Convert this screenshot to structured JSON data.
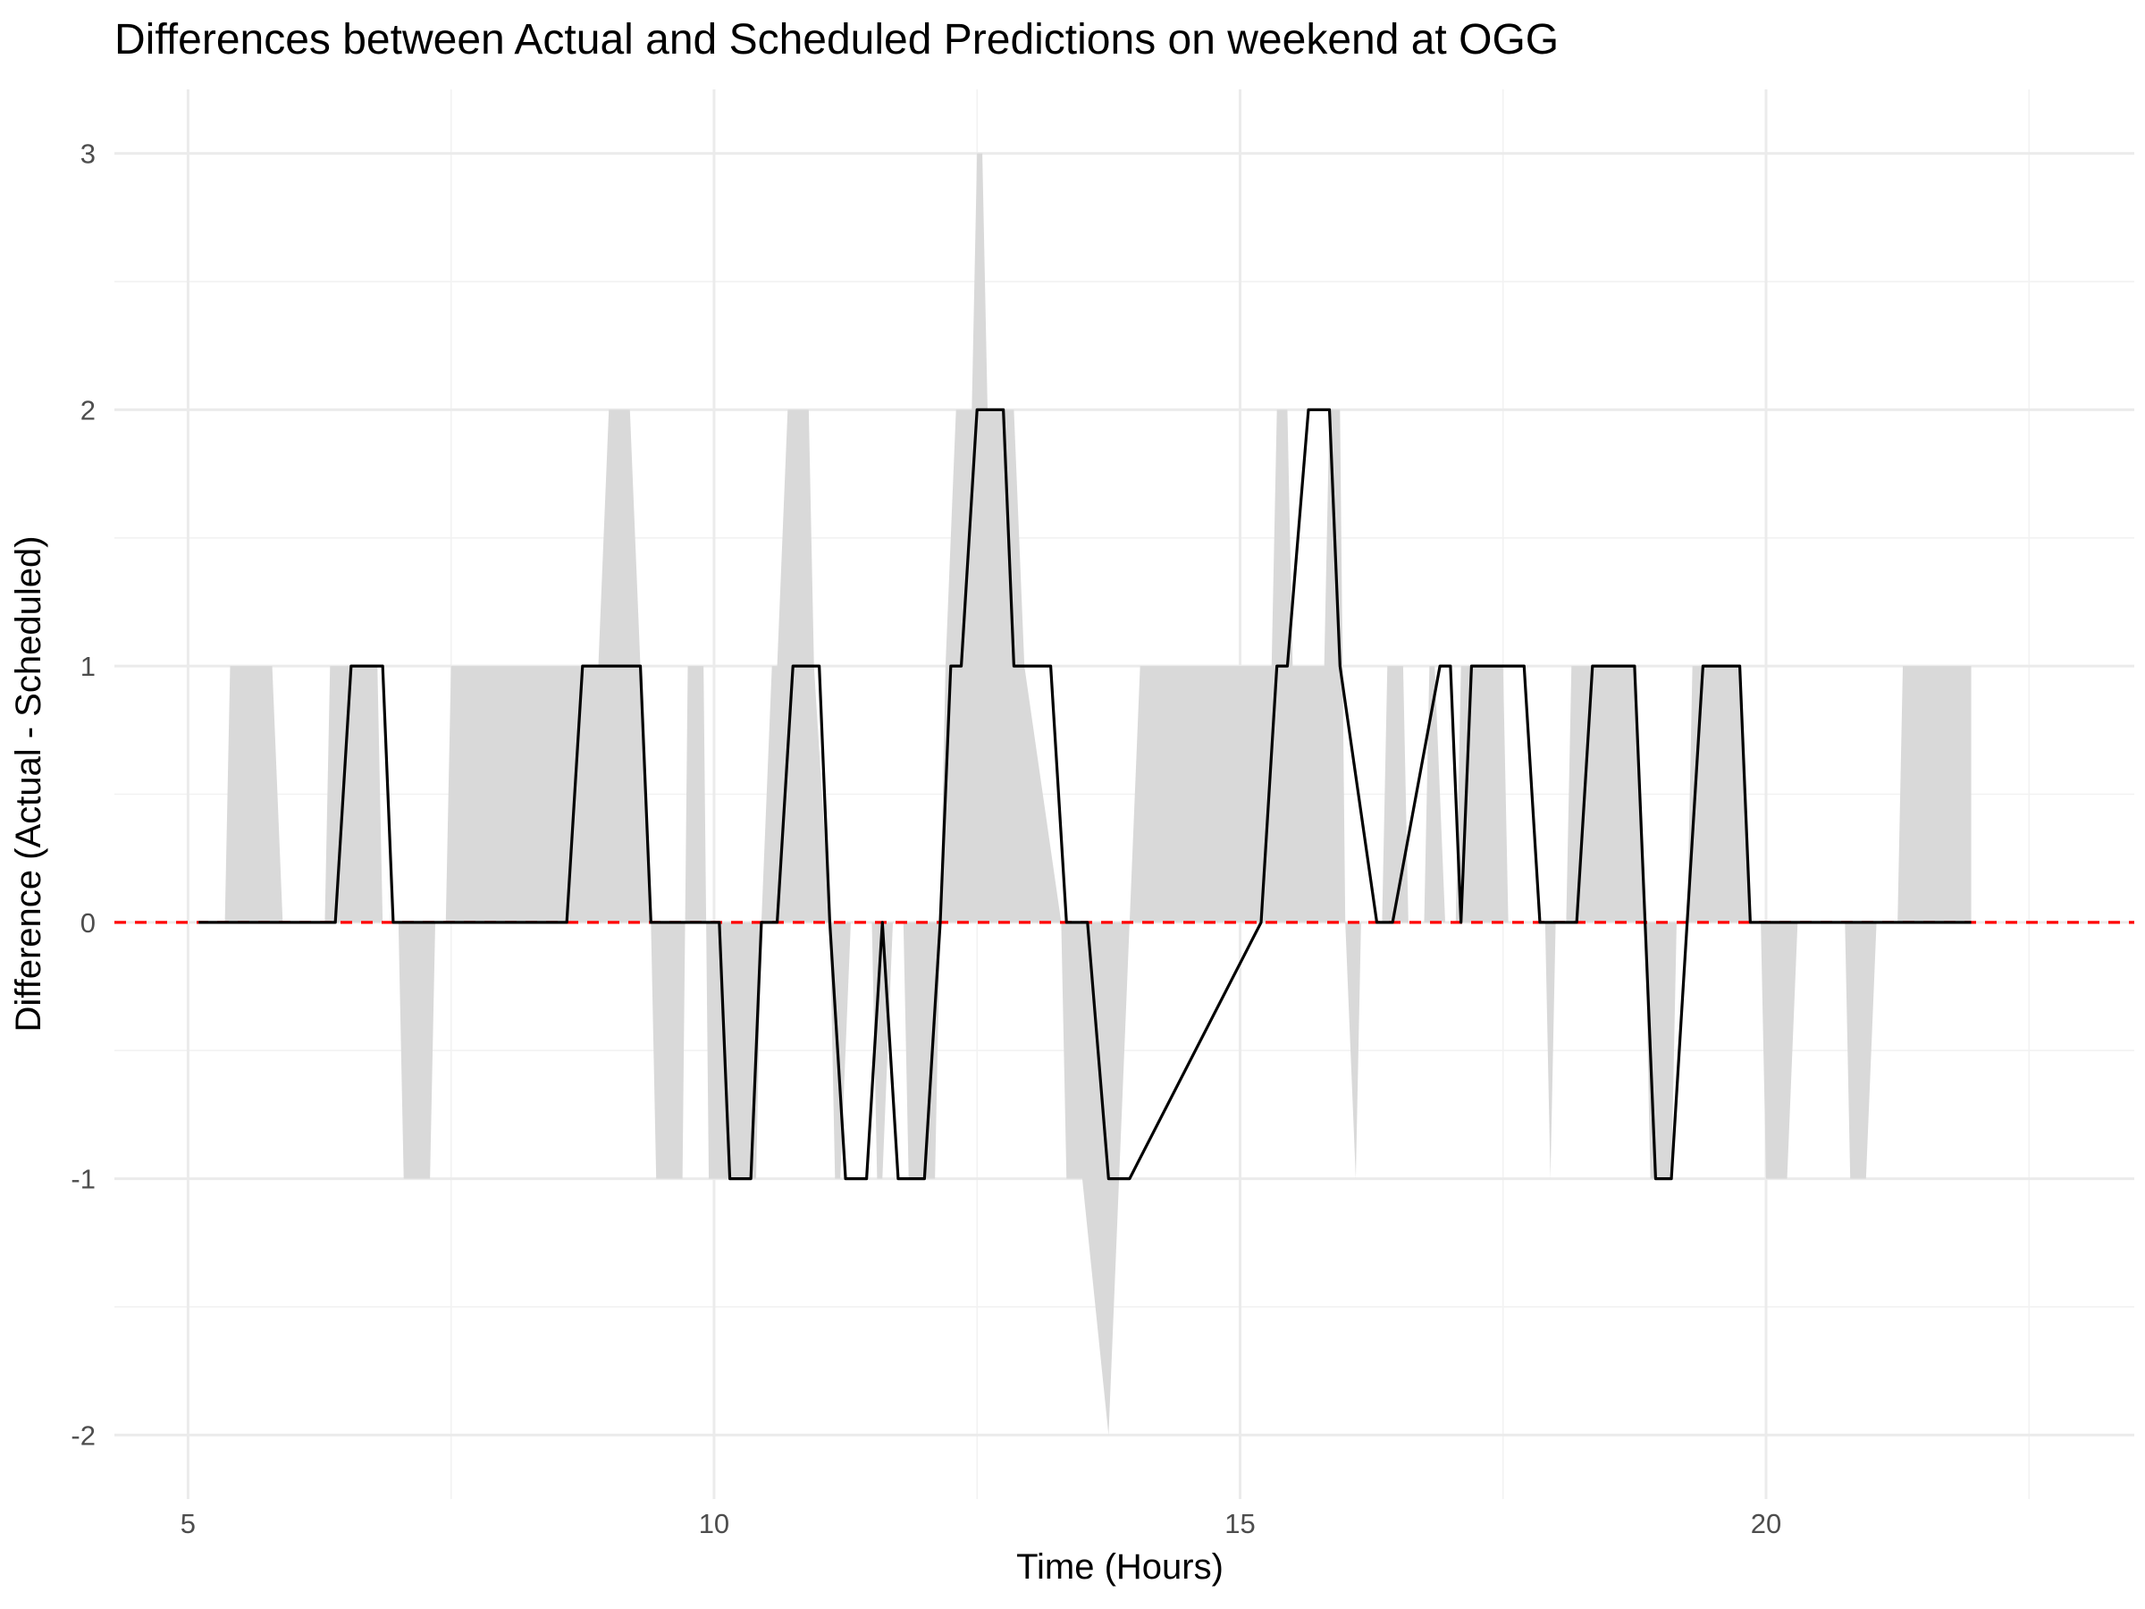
{
  "chart_data": {
    "type": "line",
    "title": "Differences between Actual and Scheduled Predictions on weekend at OGG",
    "xlabel": "Time (Hours)",
    "ylabel": "Difference (Actual - Scheduled)",
    "xlim": [
      4.3,
      23.5
    ],
    "ylim": [
      -2.25,
      3.25
    ],
    "x_ticks": [
      5,
      10,
      15,
      20
    ],
    "x_tick_labels": [
      "5",
      "10",
      "15",
      "20"
    ],
    "y_ticks": [
      -2,
      -1,
      0,
      1,
      2,
      3
    ],
    "y_tick_labels": [
      "-2",
      "-1",
      "0",
      "1",
      "2",
      "3"
    ],
    "grid": true,
    "legend": "none",
    "reference_line": {
      "y": 0,
      "color": "#ff0000",
      "style": "dashed"
    },
    "band": {
      "color": "#d9d9d9",
      "points": [
        [
          5.1,
          0
        ],
        [
          5.35,
          0
        ],
        [
          5.4,
          1
        ],
        [
          5.8,
          1
        ],
        [
          5.9,
          0
        ],
        [
          6.3,
          0
        ],
        [
          6.35,
          1
        ],
        [
          6.8,
          1
        ],
        [
          6.85,
          0
        ],
        [
          7.0,
          0
        ],
        [
          7.05,
          -1
        ],
        [
          7.3,
          -1
        ],
        [
          7.35,
          0
        ],
        [
          7.45,
          0
        ],
        [
          7.5,
          1
        ],
        [
          8.6,
          1
        ],
        [
          8.9,
          1
        ],
        [
          9.0,
          2
        ],
        [
          9.2,
          2
        ],
        [
          9.3,
          1
        ],
        [
          9.4,
          0
        ],
        [
          9.45,
          -1
        ],
        [
          9.7,
          -1
        ],
        [
          9.75,
          1
        ],
        [
          9.9,
          1
        ],
        [
          9.95,
          -1
        ],
        [
          10.4,
          -1
        ],
        [
          10.45,
          0
        ],
        [
          10.55,
          1
        ],
        [
          10.6,
          1
        ],
        [
          10.7,
          2
        ],
        [
          10.9,
          2
        ],
        [
          10.95,
          1
        ],
        [
          11.1,
          0
        ],
        [
          11.15,
          -1
        ],
        [
          11.2,
          -1
        ],
        [
          11.3,
          0
        ],
        [
          11.5,
          0
        ],
        [
          11.55,
          -1
        ],
        [
          11.6,
          -1
        ],
        [
          11.7,
          0
        ],
        [
          11.8,
          0
        ],
        [
          11.85,
          -1
        ],
        [
          12.1,
          -1
        ],
        [
          12.15,
          0
        ],
        [
          12.2,
          1
        ],
        [
          12.3,
          2
        ],
        [
          12.45,
          2
        ],
        [
          12.5,
          3
        ],
        [
          12.55,
          3
        ],
        [
          12.6,
          2
        ],
        [
          12.85,
          2
        ],
        [
          12.95,
          1
        ],
        [
          13.3,
          0
        ],
        [
          13.35,
          -1
        ],
        [
          13.5,
          -1
        ],
        [
          13.75,
          -2
        ],
        [
          13.85,
          -1
        ],
        [
          13.95,
          0
        ],
        [
          14.05,
          1
        ],
        [
          15.3,
          1
        ],
        [
          15.35,
          2
        ],
        [
          15.45,
          2
        ],
        [
          15.5,
          1
        ],
        [
          15.8,
          1
        ],
        [
          15.85,
          2
        ],
        [
          15.95,
          2
        ],
        [
          16.0,
          0
        ],
        [
          16.1,
          -1
        ],
        [
          16.15,
          0
        ],
        [
          16.35,
          0
        ],
        [
          16.4,
          1
        ],
        [
          16.55,
          1
        ],
        [
          16.6,
          0
        ],
        [
          16.75,
          0
        ],
        [
          16.8,
          1
        ],
        [
          16.85,
          1
        ],
        [
          16.95,
          0
        ],
        [
          17.05,
          0
        ],
        [
          17.1,
          1
        ],
        [
          17.5,
          1
        ],
        [
          17.55,
          0
        ],
        [
          17.9,
          0
        ],
        [
          17.95,
          -1
        ],
        [
          18.0,
          0
        ],
        [
          18.1,
          0
        ],
        [
          18.15,
          1
        ],
        [
          18.75,
          1
        ],
        [
          18.85,
          0
        ],
        [
          18.9,
          -1
        ],
        [
          19.1,
          -1
        ],
        [
          19.15,
          0
        ],
        [
          19.25,
          0
        ],
        [
          19.3,
          1
        ],
        [
          19.75,
          1
        ],
        [
          19.85,
          0
        ],
        [
          19.95,
          0
        ],
        [
          20.0,
          -1
        ],
        [
          20.2,
          -1
        ],
        [
          20.3,
          0
        ],
        [
          20.75,
          0
        ],
        [
          20.8,
          -1
        ],
        [
          20.95,
          -1
        ],
        [
          21.05,
          0
        ],
        [
          21.25,
          0
        ],
        [
          21.3,
          1
        ],
        [
          21.95,
          1
        ],
        [
          21.95,
          0
        ]
      ]
    },
    "series": [
      {
        "color": "#000000",
        "x": [
          5.1,
          6.4,
          6.55,
          6.85,
          6.95,
          8.6,
          8.75,
          9.3,
          9.4,
          10.05,
          10.15,
          10.35,
          10.45,
          10.6,
          10.75,
          11.0,
          11.1,
          11.25,
          11.45,
          11.6,
          11.75,
          12.0,
          12.15,
          12.25,
          12.35,
          12.5,
          12.75,
          12.85,
          13.2,
          13.35,
          13.55,
          13.75,
          13.95,
          15.2,
          15.35,
          15.45,
          15.65,
          15.85,
          15.95,
          16.3,
          16.45,
          16.9,
          17.0,
          17.1,
          17.2,
          17.7,
          17.85,
          18.2,
          18.35,
          18.75,
          18.85,
          18.95,
          19.1,
          19.25,
          19.4,
          19.75,
          19.85,
          21.95
        ],
        "y": [
          0,
          0,
          1,
          1,
          0,
          0,
          1,
          1,
          0,
          0,
          -1,
          -1,
          0,
          0,
          1,
          1,
          0,
          -1,
          -1,
          0,
          -1,
          -1,
          0,
          1,
          1,
          2,
          2,
          1,
          1,
          0,
          0,
          -1,
          -1,
          0,
          1,
          1,
          2,
          2,
          1,
          0,
          0,
          1,
          1,
          0,
          1,
          1,
          0,
          0,
          1,
          1,
          0,
          -1,
          -1,
          0,
          1,
          1,
          0,
          0
        ]
      }
    ]
  }
}
